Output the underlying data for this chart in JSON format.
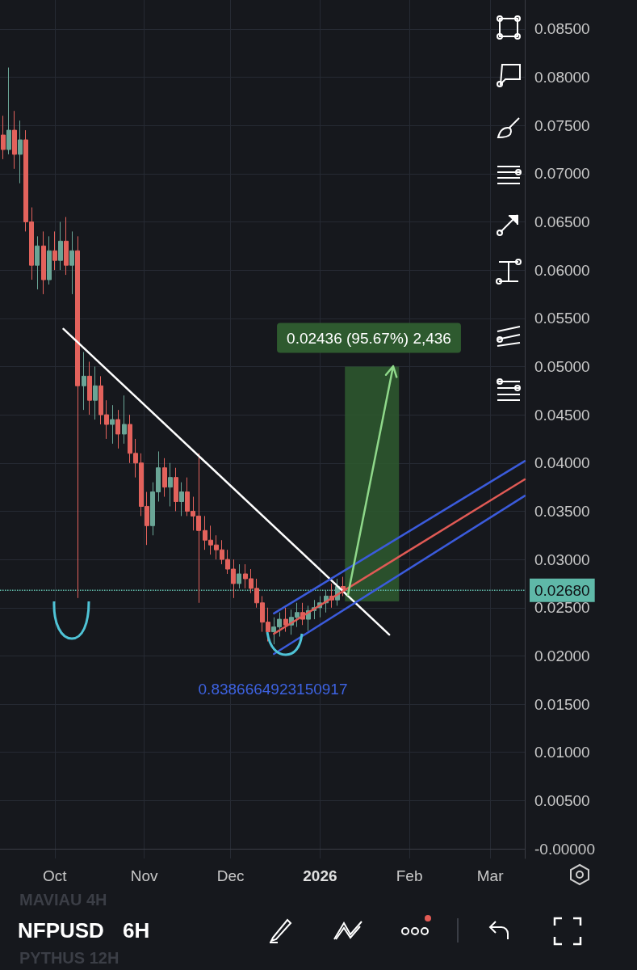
{
  "chart_data": {
    "type": "candlestick",
    "title": "NFPUSD",
    "subtitle": "6H",
    "x": [
      "2025-09-13",
      "2025-09-15",
      "2025-09-17",
      "2025-09-19",
      "2025-09-21",
      "2025-09-23",
      "2025-09-25",
      "2025-09-27",
      "2025-09-29",
      "2025-10-01",
      "2025-10-03",
      "2025-10-05",
      "2025-10-07",
      "2025-10-09",
      "2025-10-11",
      "2025-10-13",
      "2025-10-15",
      "2025-10-17",
      "2025-10-19",
      "2025-10-21",
      "2025-10-23",
      "2025-10-25",
      "2025-10-27",
      "2025-10-29",
      "2025-10-31",
      "2025-11-02",
      "2025-11-04",
      "2025-11-06",
      "2025-11-08",
      "2025-11-10",
      "2025-11-12",
      "2025-11-14",
      "2025-11-16",
      "2025-11-18",
      "2025-11-20",
      "2025-11-22",
      "2025-11-24",
      "2025-11-26",
      "2025-11-28",
      "2025-11-30",
      "2025-12-02",
      "2025-12-04",
      "2025-12-06",
      "2025-12-08",
      "2025-12-10",
      "2025-12-12",
      "2025-12-14",
      "2025-12-16",
      "2025-12-18",
      "2025-12-20",
      "2025-12-22",
      "2025-12-24",
      "2025-12-26",
      "2025-12-28",
      "2025-12-30",
      "2026-01-01",
      "2026-01-03",
      "2026-01-05",
      "2026-01-07",
      "2026-01-09"
    ],
    "ohlc": [
      [
        0.074,
        0.076,
        0.0715,
        0.0725
      ],
      [
        0.0725,
        0.081,
        0.072,
        0.0745
      ],
      [
        0.0745,
        0.0765,
        0.0705,
        0.072
      ],
      [
        0.072,
        0.0755,
        0.069,
        0.0735
      ],
      [
        0.0735,
        0.0745,
        0.064,
        0.065
      ],
      [
        0.065,
        0.0665,
        0.059,
        0.0605
      ],
      [
        0.0605,
        0.0635,
        0.058,
        0.0625
      ],
      [
        0.0625,
        0.064,
        0.0575,
        0.059
      ],
      [
        0.059,
        0.0635,
        0.0585,
        0.062
      ],
      [
        0.062,
        0.064,
        0.06,
        0.061
      ],
      [
        0.061,
        0.065,
        0.06,
        0.063
      ],
      [
        0.063,
        0.0655,
        0.0595,
        0.0605
      ],
      [
        0.0605,
        0.064,
        0.0575,
        0.062
      ],
      [
        0.062,
        0.0635,
        0.026,
        0.048
      ],
      [
        0.048,
        0.0515,
        0.0455,
        0.049
      ],
      [
        0.049,
        0.0505,
        0.045,
        0.0465
      ],
      [
        0.0465,
        0.05,
        0.0445,
        0.048
      ],
      [
        0.048,
        0.049,
        0.044,
        0.045
      ],
      [
        0.045,
        0.0465,
        0.0425,
        0.044
      ],
      [
        0.044,
        0.046,
        0.042,
        0.0445
      ],
      [
        0.0445,
        0.0455,
        0.0415,
        0.043
      ],
      [
        0.043,
        0.047,
        0.042,
        0.044
      ],
      [
        0.044,
        0.045,
        0.04,
        0.041
      ],
      [
        0.041,
        0.0425,
        0.0385,
        0.04
      ],
      [
        0.04,
        0.041,
        0.0345,
        0.0355
      ],
      [
        0.0355,
        0.037,
        0.0315,
        0.0335
      ],
      [
        0.0335,
        0.038,
        0.0325,
        0.037
      ],
      [
        0.037,
        0.0412,
        0.036,
        0.0395
      ],
      [
        0.0395,
        0.0405,
        0.0365,
        0.0375
      ],
      [
        0.0375,
        0.04,
        0.0355,
        0.0385
      ],
      [
        0.0385,
        0.0395,
        0.035,
        0.036
      ],
      [
        0.036,
        0.038,
        0.0345,
        0.037
      ],
      [
        0.037,
        0.0385,
        0.0345,
        0.035
      ],
      [
        0.035,
        0.0365,
        0.033,
        0.0345
      ],
      [
        0.0345,
        0.041,
        0.0255,
        0.033
      ],
      [
        0.033,
        0.0345,
        0.031,
        0.032
      ],
      [
        0.032,
        0.0335,
        0.0305,
        0.0315
      ],
      [
        0.0315,
        0.0325,
        0.03,
        0.031
      ],
      [
        0.031,
        0.032,
        0.0295,
        0.03
      ],
      [
        0.03,
        0.031,
        0.0285,
        0.029
      ],
      [
        0.029,
        0.03,
        0.026,
        0.0275
      ],
      [
        0.0275,
        0.0295,
        0.027,
        0.0285
      ],
      [
        0.0285,
        0.0295,
        0.027,
        0.028
      ],
      [
        0.028,
        0.029,
        0.0265,
        0.027
      ],
      [
        0.027,
        0.028,
        0.025,
        0.0255
      ],
      [
        0.0255,
        0.0262,
        0.0225,
        0.0235
      ],
      [
        0.0235,
        0.025,
        0.0215,
        0.0225
      ],
      [
        0.0225,
        0.024,
        0.0212,
        0.023
      ],
      [
        0.023,
        0.0245,
        0.022,
        0.0238
      ],
      [
        0.0238,
        0.025,
        0.0225,
        0.0232
      ],
      [
        0.0232,
        0.0248,
        0.0222,
        0.024
      ],
      [
        0.024,
        0.0255,
        0.023,
        0.0245
      ],
      [
        0.0245,
        0.0255,
        0.0232,
        0.0238
      ],
      [
        0.0238,
        0.0252,
        0.0226,
        0.0247
      ],
      [
        0.0247,
        0.0258,
        0.0238,
        0.025
      ],
      [
        0.025,
        0.0262,
        0.024,
        0.0255
      ],
      [
        0.0255,
        0.0268,
        0.0245,
        0.0262
      ],
      [
        0.0262,
        0.0275,
        0.025,
        0.0258
      ],
      [
        0.0258,
        0.028,
        0.0252,
        0.0272
      ],
      [
        0.0272,
        0.0282,
        0.0262,
        0.0268
      ]
    ],
    "colors": [
      "#e3625c",
      "#6aa596",
      "#e3625c",
      "#6aa596",
      "#e3625c",
      "#e3625c",
      "#6aa596",
      "#e3625c",
      "#6aa596",
      "#e3625c",
      "#6aa596",
      "#e3625c",
      "#6aa596",
      "#e3625c",
      "#6aa596",
      "#e3625c",
      "#6aa596",
      "#e3625c",
      "#e3625c",
      "#6aa596",
      "#e3625c",
      "#6aa596",
      "#e3625c",
      "#e3625c",
      "#e3625c",
      "#e3625c",
      "#6aa596",
      "#6aa596",
      "#e3625c",
      "#6aa596",
      "#e3625c",
      "#6aa596",
      "#e3625c",
      "#e3625c",
      "#e3625c",
      "#e3625c",
      "#e3625c",
      "#e3625c",
      "#e3625c",
      "#e3625c",
      "#e3625c",
      "#6aa596",
      "#e3625c",
      "#e3625c",
      "#e3625c",
      "#e3625c",
      "#e3625c",
      "#6aa596",
      "#6aa596",
      "#e3625c",
      "#6aa596",
      "#6aa596",
      "#e3625c",
      "#6aa596",
      "#6aa596",
      "#6aa596",
      "#6aa596",
      "#e3625c",
      "#6aa596",
      "#e3625c"
    ],
    "series": [
      {
        "type": "line",
        "color": "#ffffff",
        "x": [
          "2025-10-04",
          "2026-01-25"
        ],
        "values": [
          0.0539,
          0.0222
        ]
      },
      {
        "type": "line",
        "color": "#3b5bdb",
        "x": [
          "2025-12-16",
          "2026-03-13"
        ],
        "values": [
          0.0202,
          0.0366
        ]
      },
      {
        "type": "line",
        "color": "#3b5bdb",
        "x": [
          "2025-12-16",
          "2026-03-13"
        ],
        "values": [
          0.0244,
          0.0402
        ]
      },
      {
        "type": "line",
        "color": "#e05a55",
        "x": [
          "2025-12-16",
          "2026-03-13"
        ],
        "values": [
          0.0223,
          0.0383
        ]
      },
      {
        "type": "bar",
        "color": "#2e5a2f",
        "x": [
          "2026-01-19"
        ],
        "base": [
          0.02564
        ],
        "values": [
          0.02436
        ]
      }
    ],
    "xlim": [
      "2025-09-12",
      "2026-03-13"
    ],
    "xticks": [
      {
        "value": "2025-10-01",
        "label": "Oct"
      },
      {
        "value": "2025-11-01",
        "label": "Nov"
      },
      {
        "value": "2025-12-01",
        "label": "Dec"
      },
      {
        "value": "2026-01-01",
        "label": "2026"
      },
      {
        "value": "2026-02-01",
        "label": "Feb"
      },
      {
        "value": "2026-03-01",
        "label": "Mar"
      }
    ],
    "ylim": [
      -0.001,
      0.088
    ],
    "yticks": [
      {
        "value": 0,
        "label": "-0.00000"
      },
      {
        "value": 0.005,
        "label": "0.00500"
      },
      {
        "value": 0.01,
        "label": "0.01000"
      },
      {
        "value": 0.015,
        "label": "0.01500"
      },
      {
        "value": 0.02,
        "label": "0.02000"
      },
      {
        "value": 0.025,
        "label": "0.02500"
      },
      {
        "value": 0.03,
        "label": "0.03000"
      },
      {
        "value": 0.035,
        "label": "0.03500"
      },
      {
        "value": 0.04,
        "label": "0.04000"
      },
      {
        "value": 0.045,
        "label": "0.04500"
      },
      {
        "value": 0.05,
        "label": "0.05000"
      },
      {
        "value": 0.055,
        "label": "0.05500"
      },
      {
        "value": 0.06,
        "label": "0.06000"
      },
      {
        "value": 0.065,
        "label": "0.06500"
      },
      {
        "value": 0.07,
        "label": "0.07000"
      },
      {
        "value": 0.075,
        "label": "0.07500"
      },
      {
        "value": 0.08,
        "label": "0.08000"
      },
      {
        "value": 0.085,
        "label": "0.08500"
      }
    ],
    "ref_lines": [
      {
        "axis": "y",
        "value": 0.0268,
        "label": "0.02680",
        "color": "#5fb8a8",
        "line_style": "dotted"
      }
    ],
    "annotations": [
      "0.02436 (95.67%) 2,436",
      "0.8386664923150917",
      "MAVIAU 4H",
      "PYTHUS 12H"
    ],
    "grid": true
  }
}
